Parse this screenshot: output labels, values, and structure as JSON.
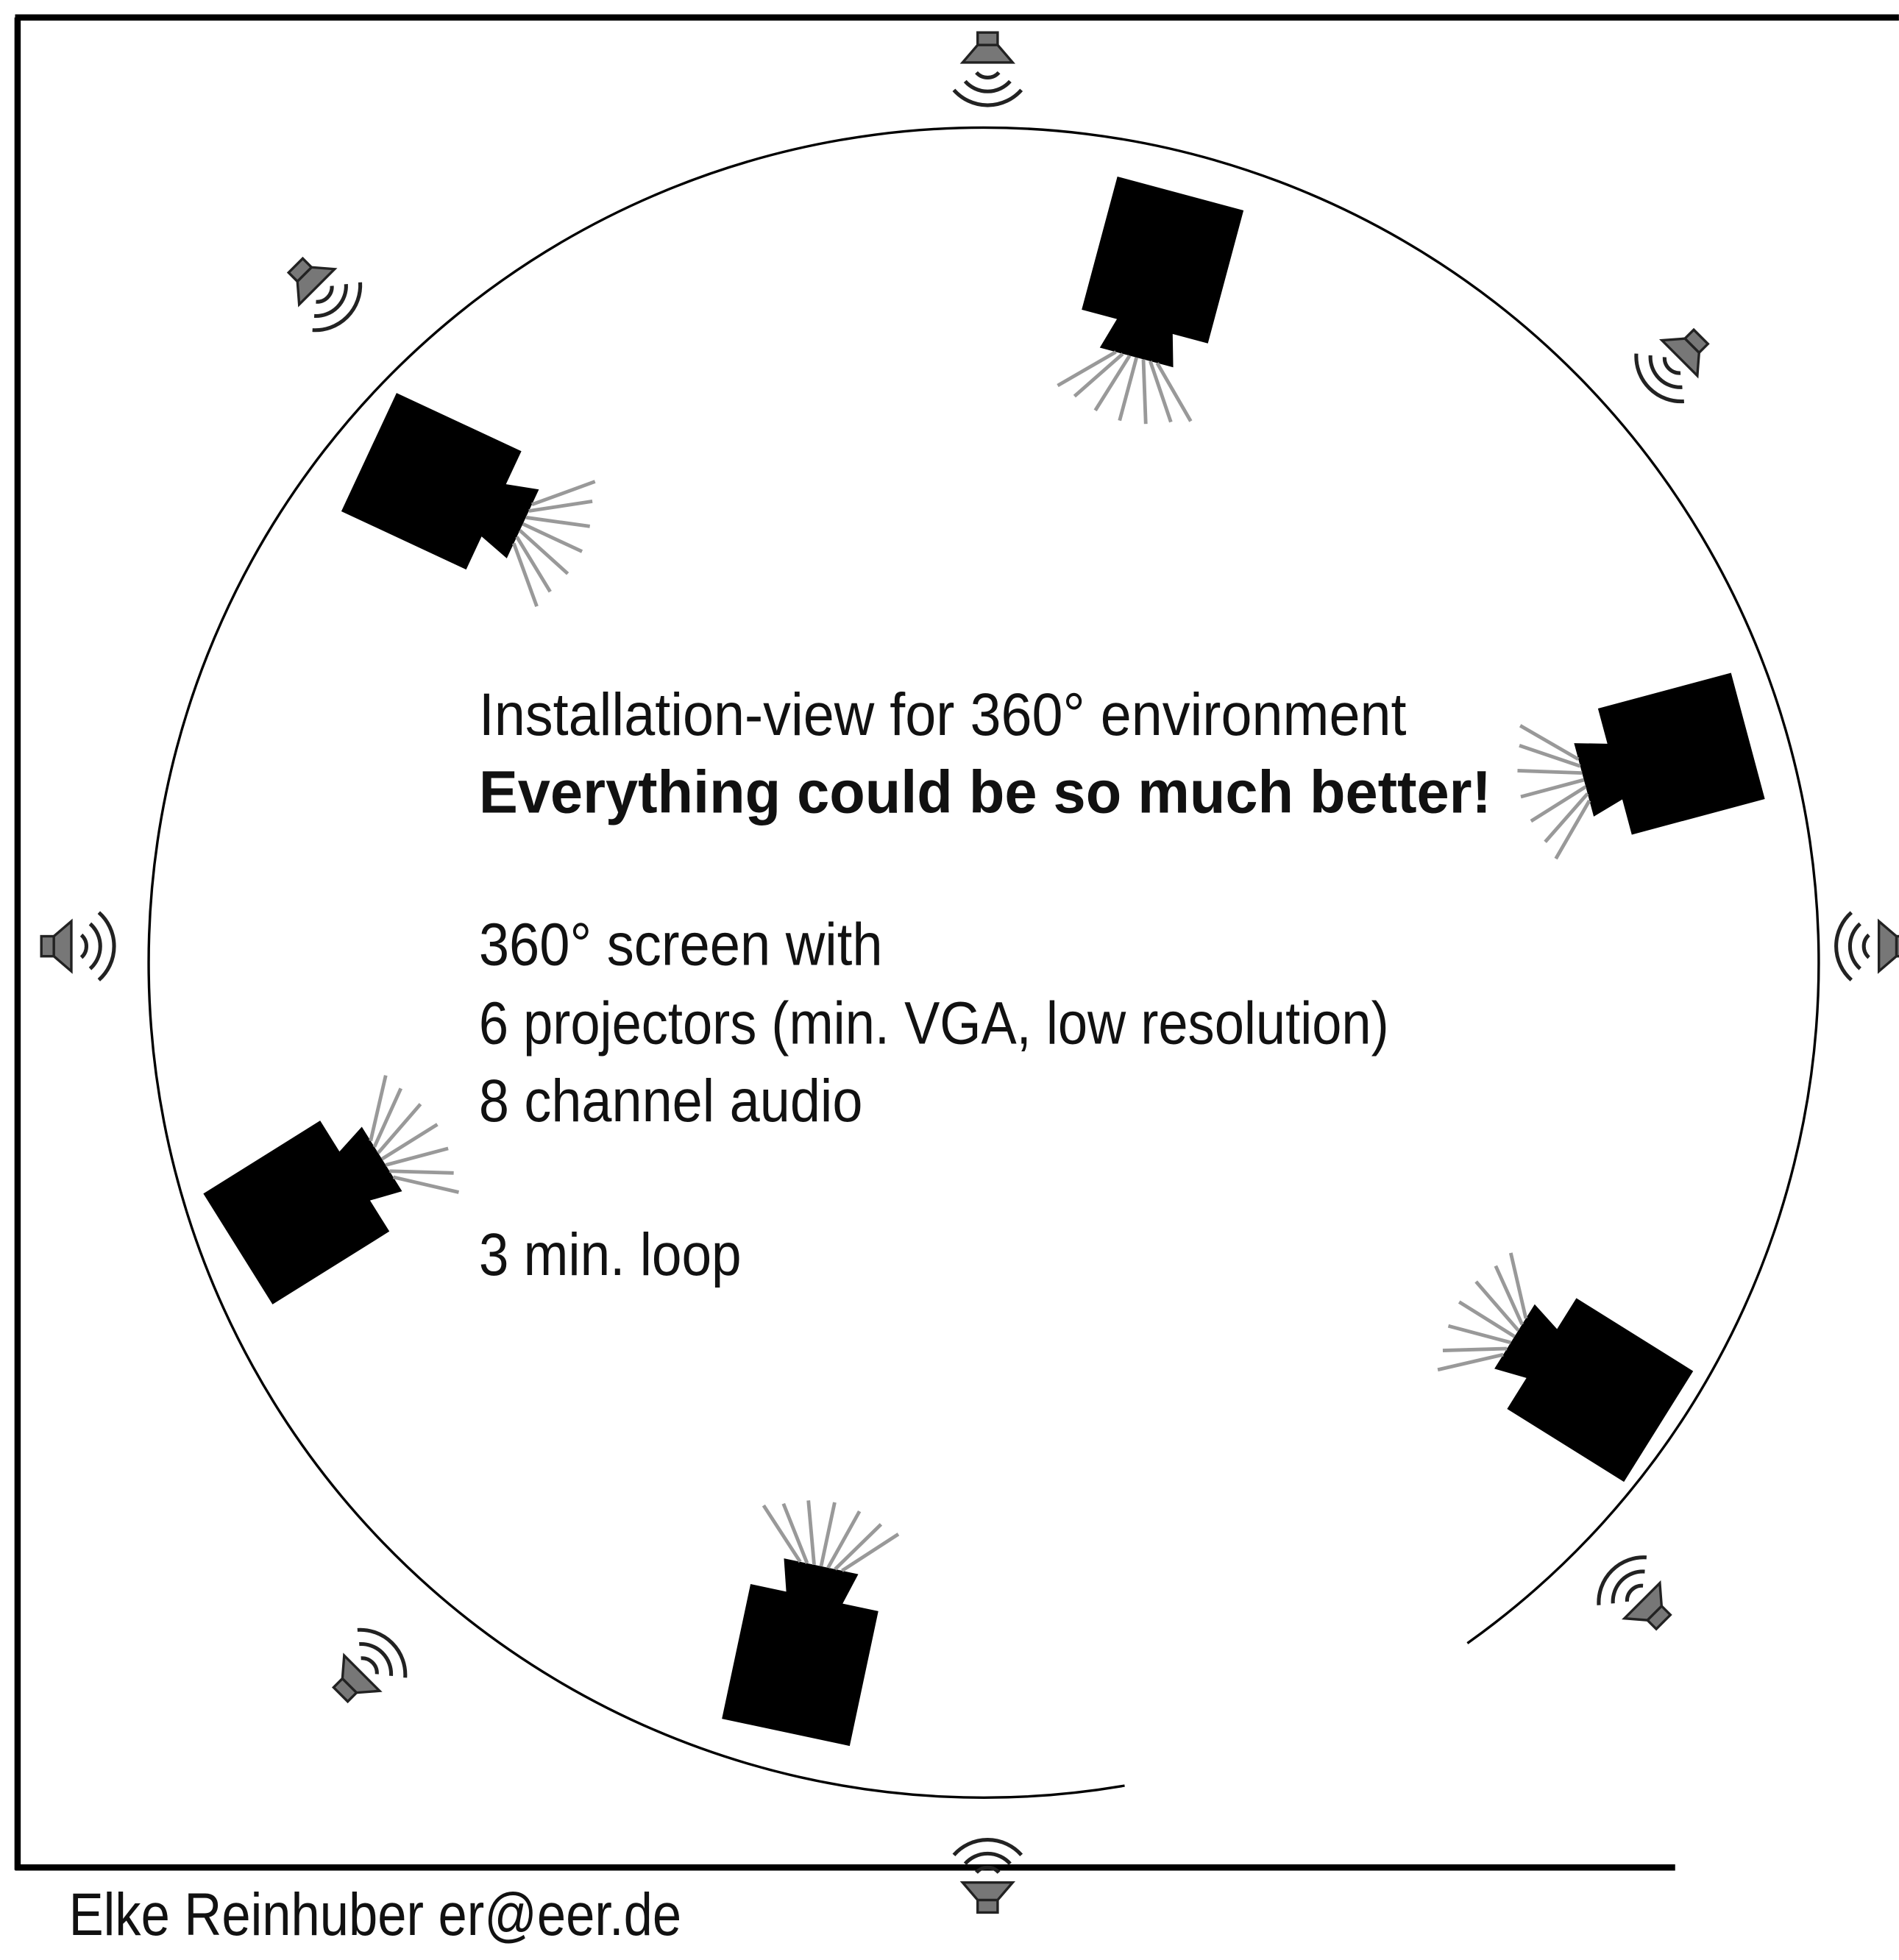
{
  "title": "Installation-view for 360° environment",
  "subtitle": "Everything could be so much better!",
  "specs": [
    "360° screen with",
    "6 projectors (min. VGA, low resolution)",
    "8 channel audio"
  ],
  "duration": "3 min. loop",
  "credit": "Elke Reinhuber er@eer.de"
}
